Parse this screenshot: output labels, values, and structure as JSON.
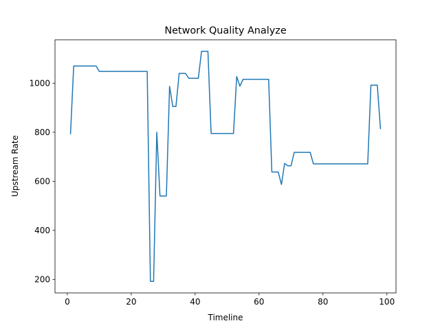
{
  "chart_data": {
    "type": "line",
    "title": "Network Quality Analyze",
    "x_label": "Timeline",
    "y_label": "Upstream Rate",
    "x": [
      1,
      2,
      3,
      4,
      5,
      6,
      7,
      8,
      9,
      10,
      11,
      12,
      13,
      14,
      15,
      16,
      17,
      18,
      19,
      20,
      21,
      22,
      23,
      24,
      25,
      26,
      27,
      28,
      29,
      30,
      31,
      32,
      33,
      34,
      35,
      36,
      37,
      38,
      39,
      40,
      41,
      42,
      43,
      44,
      45,
      46,
      47,
      48,
      49,
      50,
      51,
      52,
      53,
      54,
      55,
      56,
      57,
      58,
      59,
      60,
      61,
      62,
      63,
      64,
      65,
      66,
      67,
      68,
      69,
      70,
      71,
      72,
      73,
      74,
      75,
      76,
      77,
      78,
      79,
      80,
      81,
      82,
      83,
      84,
      85,
      86,
      87,
      88,
      89,
      90,
      91,
      92,
      93,
      94,
      95,
      96,
      97,
      98
    ],
    "series": [
      {
        "color": "#1f77b4",
        "values": [
          792,
          1070,
          1070,
          1070,
          1070,
          1070,
          1070,
          1070,
          1070,
          1048,
          1048,
          1048,
          1048,
          1048,
          1048,
          1048,
          1048,
          1048,
          1048,
          1048,
          1048,
          1048,
          1048,
          1048,
          1048,
          192,
          192,
          800,
          540,
          540,
          540,
          987,
          905,
          905,
          1040,
          1040,
          1040,
          1020,
          1020,
          1020,
          1020,
          1130,
          1130,
          1130,
          795,
          795,
          795,
          795,
          795,
          795,
          795,
          795,
          1027,
          988,
          1016,
          1016,
          1016,
          1016,
          1016,
          1016,
          1016,
          1016,
          1016,
          638,
          638,
          638,
          587,
          673,
          663,
          663,
          718,
          718,
          718,
          718,
          718,
          718,
          671,
          671,
          671,
          671,
          671,
          671,
          671,
          671,
          671,
          671,
          671,
          671,
          671,
          671,
          671,
          671,
          671,
          671,
          992,
          992,
          992,
          813
        ]
      }
    ],
    "xlim": [
      -3.85,
      102.85
    ],
    "ylim": [
      145,
      1177
    ],
    "xticks": [
      0,
      20,
      40,
      60,
      80,
      100
    ],
    "yticks": [
      200,
      400,
      600,
      800,
      1000
    ]
  }
}
